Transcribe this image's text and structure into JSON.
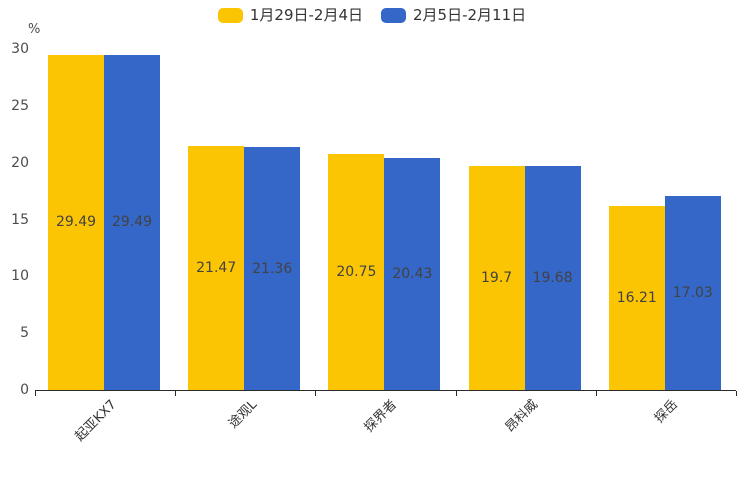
{
  "chart_data": {
    "type": "bar",
    "title": "",
    "unit_label": "%",
    "categories": [
      "起亚KX7",
      "途观L",
      "探界者",
      "昂科威",
      "探岳"
    ],
    "series": [
      {
        "name": "1月29日-2月4日",
        "color": "#FCC503",
        "values": [
          29.49,
          21.47,
          20.75,
          19.7,
          16.21
        ]
      },
      {
        "name": "2月5日-2月11日",
        "color": "#3567C8",
        "values": [
          29.49,
          21.36,
          20.43,
          19.68,
          17.03
        ]
      }
    ],
    "ylim": [
      0,
      30
    ],
    "yticks": [
      0,
      5,
      10,
      15,
      20,
      25,
      30
    ],
    "grid": false,
    "legend_position": "top-center",
    "value_labels": "inside-center",
    "xtick_rotation_deg": 45
  },
  "colors": {
    "background": "#ffffff",
    "axis_line": "#2b2b2b",
    "tick_text": "#4d4d4d",
    "category_text": "#333333",
    "value_label_text": "#424242",
    "legend_text": "#333333"
  }
}
